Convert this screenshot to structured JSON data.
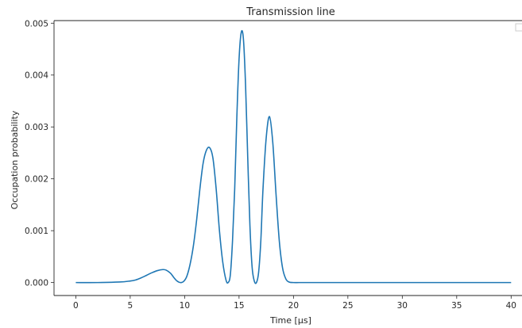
{
  "chart_data": {
    "type": "line",
    "title": "Transmission line",
    "xlabel": "Time [μs]",
    "ylabel": "Occupation probability",
    "xlim": [
      -2,
      41
    ],
    "ylim": [
      -0.00025,
      0.00505
    ],
    "xticks": [
      0,
      5,
      10,
      15,
      20,
      25,
      30,
      35,
      40
    ],
    "xtick_labels": [
      "0",
      "5",
      "10",
      "15",
      "20",
      "25",
      "30",
      "35",
      "40"
    ],
    "yticks": [
      0.0,
      0.001,
      0.002,
      0.003,
      0.004,
      0.005
    ],
    "ytick_labels": [
      "0.000",
      "0.001",
      "0.002",
      "0.003",
      "0.004",
      "0.005"
    ],
    "grid": false,
    "legend": "top-right",
    "line_color": "#1f77b4",
    "series": [
      {
        "x": [
          0,
          2,
          4,
          5,
          5.5,
          6,
          6.5,
          7,
          7.5,
          8,
          8.3,
          8.7,
          9,
          9.3,
          9.6,
          9.9,
          10.2,
          10.5,
          10.8,
          11.1,
          11.4,
          11.7,
          12,
          12.3,
          12.6,
          12.9,
          13.2,
          13.5,
          13.8,
          14,
          14.2,
          14.4,
          14.6,
          14.8,
          15,
          15.2,
          15.4,
          15.6,
          15.8,
          16,
          16.2,
          16.4,
          16.6,
          16.8,
          17,
          17.2,
          17.5,
          17.8,
          18.1,
          18.4,
          18.7,
          19,
          19.3,
          19.6,
          20,
          20.5,
          21,
          25,
          30,
          35,
          40
        ],
        "y": [
          0,
          0,
          1e-05,
          3e-05,
          5e-05,
          9e-05,
          0.00014,
          0.00019,
          0.00023,
          0.00025,
          0.00024,
          0.00018,
          0.0001,
          3e-05,
          0.0,
          2e-05,
          0.00012,
          0.00035,
          0.0007,
          0.0012,
          0.0018,
          0.0023,
          0.00255,
          0.0026,
          0.0024,
          0.0018,
          0.001,
          0.0004,
          5e-05,
          0.0,
          0.00015,
          0.0008,
          0.0018,
          0.0032,
          0.0043,
          0.00482,
          0.0047,
          0.0038,
          0.0024,
          0.0011,
          0.0003,
          3e-05,
          0.0,
          0.0002,
          0.0008,
          0.0018,
          0.0028,
          0.0032,
          0.0027,
          0.0017,
          0.0008,
          0.00028,
          7e-05,
          1e-05,
          0.0,
          0,
          0,
          0,
          0,
          0,
          0
        ]
      }
    ]
  }
}
